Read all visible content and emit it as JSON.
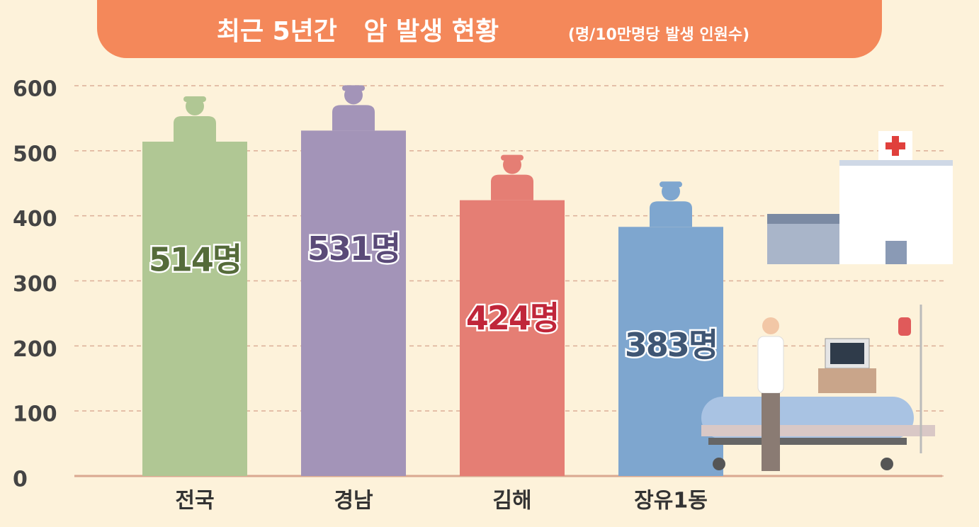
{
  "chart_data": {
    "type": "bar",
    "title": "최근 5년간   암 발생 현황",
    "subtitle": "(명/10만명당 발생 인원수)",
    "categories": [
      "전국",
      "경남",
      "김해",
      "장유1동"
    ],
    "values": [
      514,
      531,
      424,
      383
    ],
    "value_labels": [
      "514명",
      "531명",
      "424명",
      "383명"
    ],
    "colors": [
      "#b0c794",
      "#a394b8",
      "#e57e74",
      "#7ea6cf"
    ],
    "label_colors": [
      "#556b3a",
      "#5a4a78",
      "#c0263a",
      "#3f5674"
    ],
    "ylim": [
      0,
      600
    ],
    "yticks": [
      0,
      100,
      200,
      300,
      400,
      500,
      600
    ],
    "grid": true
  }
}
